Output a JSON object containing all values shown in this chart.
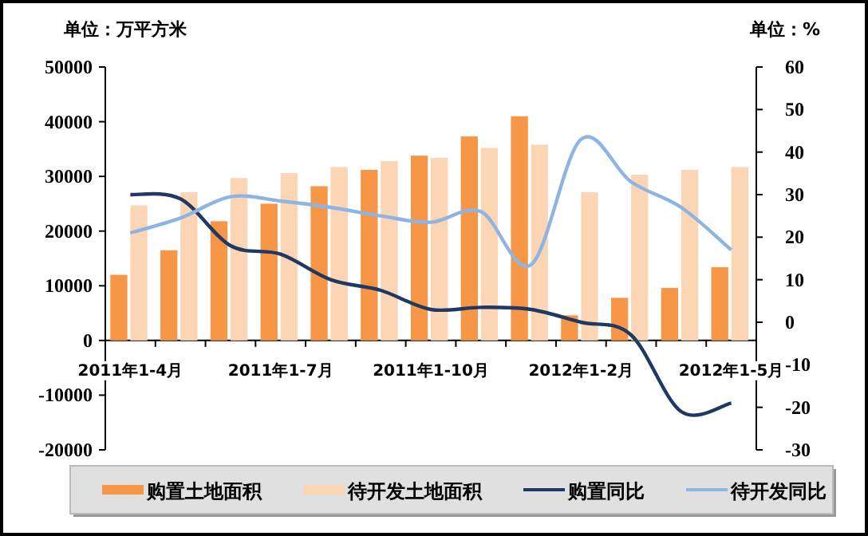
{
  "chart_data": {
    "type": "bar",
    "ylabel": "单位：万平方米",
    "y2label": "单位：%",
    "categories": [
      "2011年1-4月",
      null,
      null,
      "2011年1-7月",
      null,
      null,
      "2011年1-10月",
      null,
      null,
      "2012年1-2月",
      null,
      null,
      "2012年1-5月"
    ],
    "series": [
      {
        "name": "购置土地面积",
        "color": "#f79646",
        "values": [
          12000,
          16500,
          21800,
          25000,
          28200,
          31200,
          33800,
          37300,
          41000,
          4600,
          7800,
          9600,
          13400
        ]
      },
      {
        "name": "待开发土地面积",
        "color": "#fcd5b4",
        "values": [
          24700,
          27100,
          29700,
          30600,
          31700,
          32800,
          33400,
          35200,
          35800,
          27100,
          30300,
          31200,
          31700
        ]
      },
      {
        "name": "购置同比",
        "type": "line",
        "axis": "y2",
        "color": "#1f3864",
        "values": [
          30,
          29,
          18,
          16,
          10,
          7.5,
          3,
          3.5,
          3,
          0,
          -3,
          -21,
          -19
        ]
      },
      {
        "name": "待开发同比",
        "type": "line",
        "axis": "y2",
        "color": "#8db4e2",
        "values": [
          21,
          24.5,
          29.5,
          28.5,
          27,
          25,
          23.5,
          26,
          13.5,
          43,
          33,
          27,
          17
        ]
      }
    ],
    "ylim": [
      -20000,
      50000
    ],
    "yticks": [
      -20000,
      -10000,
      0,
      10000,
      20000,
      30000,
      40000,
      50000
    ],
    "y2lim": [
      -30,
      60
    ],
    "y2ticks": [
      -30,
      -20,
      -10,
      0,
      10,
      20,
      30,
      40,
      50,
      60
    ],
    "grid": false,
    "legend": "bottom",
    "marker": "none",
    "line_style": "solid"
  }
}
